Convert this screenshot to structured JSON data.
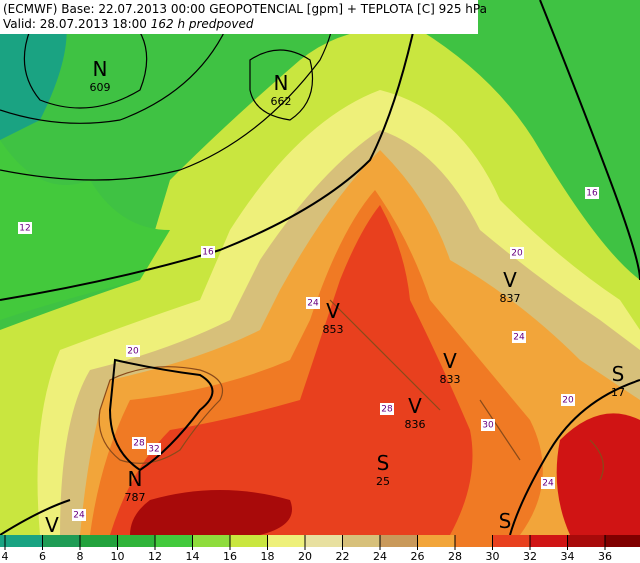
{
  "header": {
    "line1": "(ECMWF) Base: 22.07.2013 00:00 GEOPOTENCIAL [gpm] + TEPLOTA [C] 925 hPa",
    "line2": "Valid: 28.07.2013 18:00",
    "line2_italic": "162 h predpoved"
  },
  "systems": [
    {
      "letter": "N",
      "value": "609"
    },
    {
      "letter": "N",
      "value": "662"
    },
    {
      "letter": "V",
      "value": "853"
    },
    {
      "letter": "V",
      "value": "837"
    },
    {
      "letter": "V",
      "value": "833"
    },
    {
      "letter": "V",
      "value": "836"
    },
    {
      "letter": "S",
      "value": "25"
    },
    {
      "letter": "N",
      "value": "787"
    },
    {
      "letter": "S",
      "value": "17"
    },
    {
      "letter": "V"
    },
    {
      "letter": "S"
    }
  ],
  "isotherm_labels": [
    "12",
    "16",
    "16",
    "20",
    "20",
    "24",
    "24",
    "20",
    "28",
    "32",
    "28",
    "30",
    "24",
    "24"
  ],
  "legend": {
    "ticks": [
      4,
      6,
      8,
      10,
      12,
      14,
      16,
      18,
      20,
      22,
      24,
      26,
      28,
      30,
      32,
      34,
      36
    ],
    "colors": [
      "#1aa382",
      "#1f9c55",
      "#23a23d",
      "#30b43a",
      "#43c93c",
      "#8fdc3c",
      "#c9e63f",
      "#eef07a",
      "#e8e0a0",
      "#d7c07a",
      "#c9995a",
      "#f2a53a",
      "#f07a24",
      "#e8401e",
      "#d01414",
      "#a80a0a",
      "#800000"
    ]
  }
}
